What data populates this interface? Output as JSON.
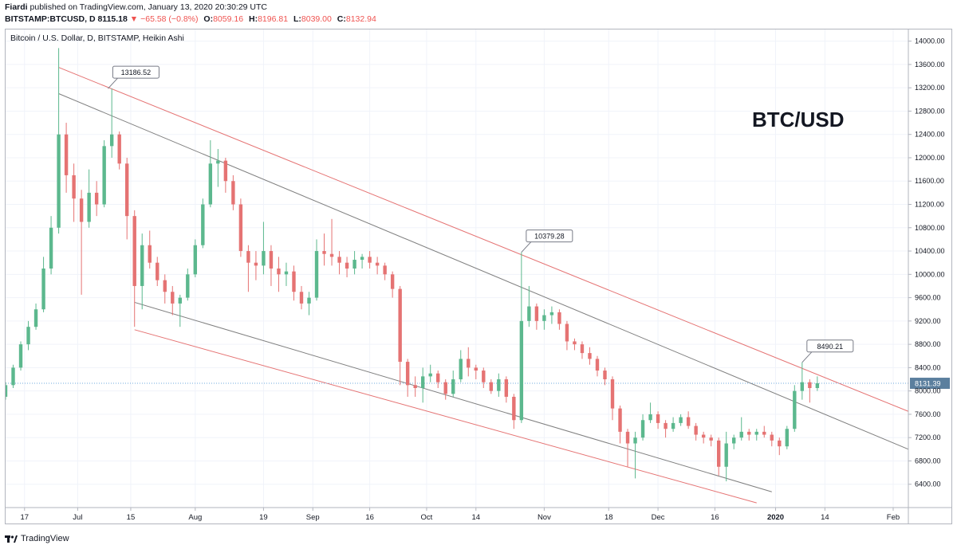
{
  "header": {
    "publisher": "Fiardi",
    "published_text": "published on TradingView.com, January 13, 2020 20:30:29 UTC",
    "symbol": "BITSTAMP:BTCUSD, D",
    "last": "8115.18",
    "change_arrow": "▼",
    "change": "−65.58 (−0.8%)",
    "o_label": "O:",
    "o_value": "8059.16",
    "h_label": "H:",
    "h_value": "8196.81",
    "l_label": "L:",
    "l_value": "8039.00",
    "c_label": "C:",
    "c_value": "8132.94"
  },
  "footer": {
    "brand": "TradingView"
  },
  "colors": {
    "up": "#26a69a",
    "up_candle": "#5cb88e",
    "down": "#e57373",
    "channel_red": "#e57373",
    "channel_gray": "#7f7f7f",
    "price_line": "#6fa8dc",
    "label_bg": "#5b7f9e"
  },
  "chart_data": {
    "type": "candlestick",
    "title": "Bitcoin / U.S. Dollar, D, BITSTAMP, Heikin Ashi",
    "watermark": "BTC/USD",
    "x_range": [
      "2019-06-12",
      "2020-02-05"
    ],
    "ylim": [
      6000,
      14200
    ],
    "y_ticks": [
      "6400.00",
      "6800.00",
      "7200.00",
      "7600.00",
      "8000.00",
      "8400.00",
      "8800.00",
      "9200.00",
      "9600.00",
      "10000.00",
      "10400.00",
      "10800.00",
      "11200.00",
      "11600.00",
      "12000.00",
      "12400.00",
      "12800.00",
      "13200.00",
      "13600.00",
      "14000.00"
    ],
    "x_ticks": [
      {
        "date": "2019-06-17",
        "label": "17"
      },
      {
        "date": "2019-07-01",
        "label": "Jul"
      },
      {
        "date": "2019-07-15",
        "label": "15"
      },
      {
        "date": "2019-08-01",
        "label": "Aug"
      },
      {
        "date": "2019-08-19",
        "label": "19"
      },
      {
        "date": "2019-09-01",
        "label": "Sep"
      },
      {
        "date": "2019-09-16",
        "label": "16"
      },
      {
        "date": "2019-10-01",
        "label": "Oct"
      },
      {
        "date": "2019-10-14",
        "label": "14"
      },
      {
        "date": "2019-11-01",
        "label": "Nov"
      },
      {
        "date": "2019-11-18",
        "label": "18"
      },
      {
        "date": "2019-12-01",
        "label": "Dec"
      },
      {
        "date": "2019-12-16",
        "label": "16"
      },
      {
        "date": "2020-01-01",
        "label": "2020"
      },
      {
        "date": "2020-01-14",
        "label": "14"
      },
      {
        "date": "2020-02-01",
        "label": "Feb"
      }
    ],
    "current_price": {
      "value": 8131.39,
      "label": "8131.39"
    },
    "callouts": [
      {
        "date": "2019-07-09",
        "value": 13186.52,
        "label": "13186.52"
      },
      {
        "date": "2019-10-26",
        "value": 10379.28,
        "label": "10379.28"
      },
      {
        "date": "2020-01-08",
        "value": 8490.21,
        "label": "8490.21"
      }
    ],
    "trendlines": [
      {
        "name": "upper-red",
        "color": "red",
        "from": {
          "date": "2019-06-26",
          "value": 13550
        },
        "to": {
          "date": "2020-02-05",
          "value": 7650
        }
      },
      {
        "name": "upper-gray",
        "color": "gray",
        "from": {
          "date": "2019-06-26",
          "value": 13100
        },
        "to": {
          "date": "2020-02-05",
          "value": 7000
        }
      },
      {
        "name": "lower-gray",
        "color": "gray",
        "from": {
          "date": "2019-07-16",
          "value": 9520
        },
        "to": {
          "date": "2019-12-31",
          "value": 6270
        }
      },
      {
        "name": "lower-red",
        "color": "red",
        "from": {
          "date": "2019-07-16",
          "value": 9050
        },
        "to": {
          "date": "2019-12-27",
          "value": 6080
        }
      }
    ],
    "candles": [
      {
        "d": "2019-06-12",
        "o": 7900,
        "h": 8150,
        "l": 7850,
        "c": 8100
      },
      {
        "d": "2019-06-14",
        "o": 8100,
        "h": 8450,
        "l": 8050,
        "c": 8400
      },
      {
        "d": "2019-06-16",
        "o": 8400,
        "h": 8850,
        "l": 8350,
        "c": 8800
      },
      {
        "d": "2019-06-18",
        "o": 8800,
        "h": 9200,
        "l": 8700,
        "c": 9100
      },
      {
        "d": "2019-06-20",
        "o": 9100,
        "h": 9500,
        "l": 9050,
        "c": 9400
      },
      {
        "d": "2019-06-22",
        "o": 9400,
        "h": 10300,
        "l": 9350,
        "c": 10100
      },
      {
        "d": "2019-06-24",
        "o": 10100,
        "h": 11000,
        "l": 10000,
        "c": 10800
      },
      {
        "d": "2019-06-26",
        "o": 10800,
        "h": 13880,
        "l": 10700,
        "c": 12400
      },
      {
        "d": "2019-06-28",
        "o": 12400,
        "h": 12600,
        "l": 11400,
        "c": 11700
      },
      {
        "d": "2019-06-30",
        "o": 11700,
        "h": 11900,
        "l": 10900,
        "c": 11300
      },
      {
        "d": "2019-07-02",
        "o": 11300,
        "h": 11450,
        "l": 9650,
        "c": 10900
      },
      {
        "d": "2019-07-04",
        "o": 10900,
        "h": 11800,
        "l": 10800,
        "c": 11400
      },
      {
        "d": "2019-07-06",
        "o": 11400,
        "h": 11600,
        "l": 11000,
        "c": 11200
      },
      {
        "d": "2019-07-08",
        "o": 11200,
        "h": 12300,
        "l": 11150,
        "c": 12200
      },
      {
        "d": "2019-07-10",
        "o": 12200,
        "h": 13186,
        "l": 12000,
        "c": 12400
      },
      {
        "d": "2019-07-12",
        "o": 12400,
        "h": 12450,
        "l": 11800,
        "c": 11900
      },
      {
        "d": "2019-07-14",
        "o": 11900,
        "h": 12000,
        "l": 10600,
        "c": 11000
      },
      {
        "d": "2019-07-16",
        "o": 11000,
        "h": 11100,
        "l": 9100,
        "c": 9800
      },
      {
        "d": "2019-07-18",
        "o": 9800,
        "h": 10700,
        "l": 9400,
        "c": 10500
      },
      {
        "d": "2019-07-20",
        "o": 10500,
        "h": 10750,
        "l": 10100,
        "c": 10200
      },
      {
        "d": "2019-07-22",
        "o": 10200,
        "h": 10300,
        "l": 9800,
        "c": 9900
      },
      {
        "d": "2019-07-24",
        "o": 9900,
        "h": 10000,
        "l": 9500,
        "c": 9700
      },
      {
        "d": "2019-07-26",
        "o": 9700,
        "h": 9800,
        "l": 9300,
        "c": 9500
      },
      {
        "d": "2019-07-28",
        "o": 9500,
        "h": 9650,
        "l": 9100,
        "c": 9600
      },
      {
        "d": "2019-07-30",
        "o": 9600,
        "h": 10100,
        "l": 9550,
        "c": 10000
      },
      {
        "d": "2019-08-01",
        "o": 10000,
        "h": 10600,
        "l": 9950,
        "c": 10500
      },
      {
        "d": "2019-08-03",
        "o": 10500,
        "h": 11300,
        "l": 10450,
        "c": 11200
      },
      {
        "d": "2019-08-05",
        "o": 11200,
        "h": 12300,
        "l": 11150,
        "c": 11900
      },
      {
        "d": "2019-08-07",
        "o": 11900,
        "h": 12150,
        "l": 11500,
        "c": 11950
      },
      {
        "d": "2019-08-09",
        "o": 11950,
        "h": 12000,
        "l": 11400,
        "c": 11600
      },
      {
        "d": "2019-08-11",
        "o": 11600,
        "h": 11700,
        "l": 11100,
        "c": 11200
      },
      {
        "d": "2019-08-13",
        "o": 11200,
        "h": 11300,
        "l": 10300,
        "c": 10400
      },
      {
        "d": "2019-08-15",
        "o": 10400,
        "h": 10500,
        "l": 9700,
        "c": 10200
      },
      {
        "d": "2019-08-17",
        "o": 10200,
        "h": 10400,
        "l": 9900,
        "c": 10150
      },
      {
        "d": "2019-08-19",
        "o": 10150,
        "h": 10900,
        "l": 10000,
        "c": 10400
      },
      {
        "d": "2019-08-21",
        "o": 10400,
        "h": 10500,
        "l": 9800,
        "c": 10100
      },
      {
        "d": "2019-08-23",
        "o": 10100,
        "h": 10300,
        "l": 9700,
        "c": 10000
      },
      {
        "d": "2019-08-25",
        "o": 10000,
        "h": 10200,
        "l": 9800,
        "c": 10050
      },
      {
        "d": "2019-08-27",
        "o": 10050,
        "h": 10150,
        "l": 9550,
        "c": 9700
      },
      {
        "d": "2019-08-29",
        "o": 9700,
        "h": 9800,
        "l": 9400,
        "c": 9500
      },
      {
        "d": "2019-08-31",
        "o": 9500,
        "h": 9700,
        "l": 9300,
        "c": 9600
      },
      {
        "d": "2019-09-02",
        "o": 9600,
        "h": 10600,
        "l": 9550,
        "c": 10400
      },
      {
        "d": "2019-09-04",
        "o": 10400,
        "h": 10700,
        "l": 10150,
        "c": 10350
      },
      {
        "d": "2019-09-06",
        "o": 10350,
        "h": 10950,
        "l": 10150,
        "c": 10300
      },
      {
        "d": "2019-09-08",
        "o": 10300,
        "h": 10400,
        "l": 10000,
        "c": 10200
      },
      {
        "d": "2019-09-10",
        "o": 10200,
        "h": 10300,
        "l": 9950,
        "c": 10100
      },
      {
        "d": "2019-09-12",
        "o": 10100,
        "h": 10400,
        "l": 10000,
        "c": 10250
      },
      {
        "d": "2019-09-14",
        "o": 10250,
        "h": 10350,
        "l": 10100,
        "c": 10300
      },
      {
        "d": "2019-09-16",
        "o": 10300,
        "h": 10400,
        "l": 10100,
        "c": 10200
      },
      {
        "d": "2019-09-18",
        "o": 10200,
        "h": 10300,
        "l": 10000,
        "c": 10150
      },
      {
        "d": "2019-09-20",
        "o": 10150,
        "h": 10200,
        "l": 9900,
        "c": 10000
      },
      {
        "d": "2019-09-22",
        "o": 10000,
        "h": 10050,
        "l": 9600,
        "c": 9750
      },
      {
        "d": "2019-09-24",
        "o": 9750,
        "h": 9800,
        "l": 8100,
        "c": 8500
      },
      {
        "d": "2019-09-26",
        "o": 8500,
        "h": 8550,
        "l": 7900,
        "c": 8100
      },
      {
        "d": "2019-09-28",
        "o": 8100,
        "h": 8250,
        "l": 7900,
        "c": 8050
      },
      {
        "d": "2019-09-30",
        "o": 8050,
        "h": 8400,
        "l": 7800,
        "c": 8250
      },
      {
        "d": "2019-10-02",
        "o": 8250,
        "h": 8450,
        "l": 8150,
        "c": 8300
      },
      {
        "d": "2019-10-04",
        "o": 8300,
        "h": 8350,
        "l": 8050,
        "c": 8150
      },
      {
        "d": "2019-10-06",
        "o": 8150,
        "h": 8200,
        "l": 7850,
        "c": 7950
      },
      {
        "d": "2019-10-08",
        "o": 7950,
        "h": 8350,
        "l": 7900,
        "c": 8200
      },
      {
        "d": "2019-10-10",
        "o": 8200,
        "h": 8700,
        "l": 8150,
        "c": 8550
      },
      {
        "d": "2019-10-12",
        "o": 8550,
        "h": 8750,
        "l": 8250,
        "c": 8400
      },
      {
        "d": "2019-10-14",
        "o": 8400,
        "h": 8450,
        "l": 8200,
        "c": 8350
      },
      {
        "d": "2019-10-16",
        "o": 8350,
        "h": 8400,
        "l": 8050,
        "c": 8150
      },
      {
        "d": "2019-10-18",
        "o": 8150,
        "h": 8200,
        "l": 7950,
        "c": 8000
      },
      {
        "d": "2019-10-20",
        "o": 8000,
        "h": 8300,
        "l": 7900,
        "c": 8200
      },
      {
        "d": "2019-10-22",
        "o": 8200,
        "h": 8250,
        "l": 7800,
        "c": 7900
      },
      {
        "d": "2019-10-24",
        "o": 7900,
        "h": 7950,
        "l": 7350,
        "c": 7500
      },
      {
        "d": "2019-10-26",
        "o": 7500,
        "h": 10379,
        "l": 7450,
        "c": 9200
      },
      {
        "d": "2019-10-28",
        "o": 9200,
        "h": 9800,
        "l": 9100,
        "c": 9450
      },
      {
        "d": "2019-10-30",
        "o": 9450,
        "h": 9500,
        "l": 9050,
        "c": 9200
      },
      {
        "d": "2019-11-01",
        "o": 9200,
        "h": 9400,
        "l": 9050,
        "c": 9300
      },
      {
        "d": "2019-11-03",
        "o": 9300,
        "h": 9450,
        "l": 9150,
        "c": 9350
      },
      {
        "d": "2019-11-05",
        "o": 9350,
        "h": 9400,
        "l": 9050,
        "c": 9150
      },
      {
        "d": "2019-11-07",
        "o": 9150,
        "h": 9200,
        "l": 8700,
        "c": 8850
      },
      {
        "d": "2019-11-09",
        "o": 8850,
        "h": 8900,
        "l": 8700,
        "c": 8800
      },
      {
        "d": "2019-11-11",
        "o": 8800,
        "h": 8850,
        "l": 8550,
        "c": 8650
      },
      {
        "d": "2019-11-13",
        "o": 8650,
        "h": 8750,
        "l": 8450,
        "c": 8550
      },
      {
        "d": "2019-11-15",
        "o": 8550,
        "h": 8600,
        "l": 8250,
        "c": 8350
      },
      {
        "d": "2019-11-17",
        "o": 8350,
        "h": 8400,
        "l": 8100,
        "c": 8200
      },
      {
        "d": "2019-11-19",
        "o": 8200,
        "h": 8250,
        "l": 7500,
        "c": 7700
      },
      {
        "d": "2019-11-21",
        "o": 7700,
        "h": 7750,
        "l": 7100,
        "c": 7300
      },
      {
        "d": "2019-11-23",
        "o": 7300,
        "h": 7350,
        "l": 6700,
        "c": 7100
      },
      {
        "d": "2019-11-25",
        "o": 7100,
        "h": 7300,
        "l": 6500,
        "c": 7200
      },
      {
        "d": "2019-11-27",
        "o": 7200,
        "h": 7600,
        "l": 7150,
        "c": 7500
      },
      {
        "d": "2019-11-29",
        "o": 7500,
        "h": 7800,
        "l": 7450,
        "c": 7600
      },
      {
        "d": "2019-12-01",
        "o": 7600,
        "h": 7650,
        "l": 7350,
        "c": 7450
      },
      {
        "d": "2019-12-03",
        "o": 7450,
        "h": 7500,
        "l": 7200,
        "c": 7350
      },
      {
        "d": "2019-12-05",
        "o": 7350,
        "h": 7550,
        "l": 7300,
        "c": 7450
      },
      {
        "d": "2019-12-07",
        "o": 7450,
        "h": 7600,
        "l": 7400,
        "c": 7550
      },
      {
        "d": "2019-12-09",
        "o": 7550,
        "h": 7650,
        "l": 7350,
        "c": 7400
      },
      {
        "d": "2019-12-11",
        "o": 7400,
        "h": 7450,
        "l": 7150,
        "c": 7250
      },
      {
        "d": "2019-12-13",
        "o": 7250,
        "h": 7300,
        "l": 7100,
        "c": 7200
      },
      {
        "d": "2019-12-15",
        "o": 7200,
        "h": 7250,
        "l": 7050,
        "c": 7150
      },
      {
        "d": "2019-12-17",
        "o": 7150,
        "h": 7200,
        "l": 6550,
        "c": 6700
      },
      {
        "d": "2019-12-19",
        "o": 6700,
        "h": 7300,
        "l": 6450,
        "c": 7100
      },
      {
        "d": "2019-12-21",
        "o": 7100,
        "h": 7250,
        "l": 7000,
        "c": 7200
      },
      {
        "d": "2019-12-23",
        "o": 7200,
        "h": 7550,
        "l": 7150,
        "c": 7300
      },
      {
        "d": "2019-12-25",
        "o": 7300,
        "h": 7350,
        "l": 7150,
        "c": 7250
      },
      {
        "d": "2019-12-27",
        "o": 7250,
        "h": 7350,
        "l": 7150,
        "c": 7300
      },
      {
        "d": "2019-12-29",
        "o": 7300,
        "h": 7400,
        "l": 7200,
        "c": 7250
      },
      {
        "d": "2019-12-31",
        "o": 7250,
        "h": 7300,
        "l": 7050,
        "c": 7150
      },
      {
        "d": "2020-01-02",
        "o": 7150,
        "h": 7200,
        "l": 6900,
        "c": 7050
      },
      {
        "d": "2020-01-04",
        "o": 7050,
        "h": 7400,
        "l": 7000,
        "c": 7350
      },
      {
        "d": "2020-01-06",
        "o": 7350,
        "h": 8100,
        "l": 7300,
        "c": 8000
      },
      {
        "d": "2020-01-08",
        "o": 8000,
        "h": 8490,
        "l": 7850,
        "c": 8150
      },
      {
        "d": "2020-01-10",
        "o": 8150,
        "h": 8200,
        "l": 7800,
        "c": 8050
      },
      {
        "d": "2020-01-12",
        "o": 8050,
        "h": 8250,
        "l": 8000,
        "c": 8132
      }
    ]
  }
}
